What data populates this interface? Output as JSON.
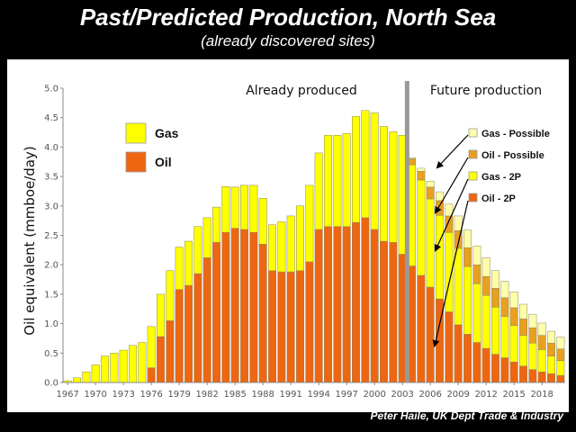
{
  "header": {
    "title": "Past/Predicted Production, North Sea",
    "subtitle": "(already discovered sites)"
  },
  "credit": "Peter Haile, UK Dept Trade & Industry",
  "chart_data": {
    "type": "bar",
    "stacked": true,
    "ylabel": "Oil equivalent (mmboe/day)",
    "ylim": [
      0,
      5
    ],
    "yticks": [
      0.0,
      0.5,
      1.0,
      1.5,
      2.0,
      2.5,
      3.0,
      3.5,
      4.0,
      4.5,
      5.0
    ],
    "ytick_labels": [
      "0.0",
      "0.5",
      "1.0",
      "1.5",
      "2.0",
      "2.5",
      "3.0",
      "3.5",
      "4.0",
      "4.5",
      "5.0"
    ],
    "categories": [
      1967,
      1968,
      1969,
      1970,
      1971,
      1972,
      1973,
      1974,
      1975,
      1976,
      1977,
      1978,
      1979,
      1980,
      1981,
      1982,
      1983,
      1984,
      1985,
      1986,
      1987,
      1988,
      1989,
      1990,
      1991,
      1992,
      1993,
      1994,
      1995,
      1996,
      1997,
      1998,
      1999,
      2000,
      2001,
      2002,
      2003,
      2004,
      2005,
      2006,
      2007,
      2008,
      2009,
      2010,
      2011,
      2012,
      2013,
      2014,
      2015,
      2016,
      2017,
      2018,
      2019,
      2020
    ],
    "xtick_labels": [
      "1967",
      "1970",
      "1973",
      "1976",
      "1979",
      "1982",
      "1985",
      "1988",
      "1991",
      "1994",
      "1997",
      "2000",
      "2003",
      "2006",
      "2009",
      "2012",
      "2015",
      "2018"
    ],
    "xtick_years": [
      1967,
      1970,
      1973,
      1976,
      1979,
      1982,
      1985,
      1988,
      1991,
      1994,
      1997,
      2000,
      2003,
      2006,
      2009,
      2012,
      2015,
      2018
    ],
    "region_labels": [
      "Already produced",
      "Future production"
    ],
    "divider_year": 2003.5,
    "legend_historic": [
      {
        "label": "Gas",
        "color": "#ffff00"
      },
      {
        "label": "Oil",
        "color": "#ee6611"
      }
    ],
    "legend_future": [
      {
        "label": "Gas - Possible",
        "color": "#ffffaa"
      },
      {
        "label": "Oil - Possible",
        "color": "#e8a020"
      },
      {
        "label": "Gas - 2P",
        "color": "#ffff00"
      },
      {
        "label": "Oil - 2P",
        "color": "#ee6611"
      }
    ],
    "series": [
      {
        "name": "Oil",
        "color": "#ee6611",
        "values": [
          0,
          0,
          0,
          0,
          0,
          0,
          0,
          0,
          0,
          0.25,
          0.78,
          1.05,
          1.58,
          1.65,
          1.85,
          2.12,
          2.38,
          2.55,
          2.62,
          2.6,
          2.55,
          2.35,
          1.9,
          1.88,
          1.88,
          1.9,
          2.05,
          2.6,
          2.65,
          2.65,
          2.65,
          2.72,
          2.8,
          2.6,
          2.4,
          2.38,
          2.18,
          null,
          null,
          null,
          null,
          null,
          null,
          null,
          null,
          null,
          null,
          null,
          null,
          null,
          null,
          null,
          null,
          null
        ]
      },
      {
        "name": "Gas",
        "color": "#ffff00",
        "values": [
          0.03,
          0.08,
          0.18,
          0.3,
          0.45,
          0.5,
          0.55,
          0.63,
          0.68,
          0.7,
          0.72,
          0.85,
          0.72,
          0.75,
          0.8,
          0.68,
          0.6,
          0.78,
          0.7,
          0.75,
          0.8,
          0.78,
          0.78,
          0.85,
          0.95,
          1.1,
          1.3,
          1.3,
          1.55,
          1.55,
          1.58,
          1.8,
          1.82,
          1.98,
          1.95,
          1.88,
          2.02,
          null,
          null,
          null,
          null,
          null,
          null,
          null,
          null,
          null,
          null,
          null,
          null,
          null,
          null,
          null,
          null,
          null
        ]
      },
      {
        "name": "Oil - 2P",
        "color": "#ee6611",
        "values": [
          null,
          null,
          null,
          null,
          null,
          null,
          null,
          null,
          null,
          null,
          null,
          null,
          null,
          null,
          null,
          null,
          null,
          null,
          null,
          null,
          null,
          null,
          null,
          null,
          null,
          null,
          null,
          null,
          null,
          null,
          null,
          null,
          null,
          null,
          null,
          null,
          null,
          1.98,
          1.82,
          1.62,
          1.42,
          1.2,
          0.98,
          0.82,
          0.68,
          0.58,
          0.48,
          0.42,
          0.35,
          0.28,
          0.22,
          0.18,
          0.15,
          0.12
        ]
      },
      {
        "name": "Gas - 2P",
        "color": "#ffff00",
        "values": [
          null,
          null,
          null,
          null,
          null,
          null,
          null,
          null,
          null,
          null,
          null,
          null,
          null,
          null,
          null,
          null,
          null,
          null,
          null,
          null,
          null,
          null,
          null,
          null,
          null,
          null,
          null,
          null,
          null,
          null,
          null,
          null,
          null,
          null,
          null,
          null,
          null,
          1.72,
          1.62,
          1.5,
          1.42,
          1.35,
          1.3,
          1.15,
          1.0,
          0.9,
          0.8,
          0.7,
          0.62,
          0.52,
          0.45,
          0.38,
          0.3,
          0.25
        ]
      },
      {
        "name": "Oil - Possible",
        "color": "#e8a020",
        "values": [
          null,
          null,
          null,
          null,
          null,
          null,
          null,
          null,
          null,
          null,
          null,
          null,
          null,
          null,
          null,
          null,
          null,
          null,
          null,
          null,
          null,
          null,
          null,
          null,
          null,
          null,
          null,
          null,
          null,
          null,
          null,
          null,
          null,
          null,
          null,
          null,
          null,
          0.1,
          0.15,
          0.2,
          0.25,
          0.28,
          0.3,
          0.32,
          0.32,
          0.32,
          0.32,
          0.32,
          0.3,
          0.28,
          0.26,
          0.24,
          0.22,
          0.2
        ]
      },
      {
        "name": "Gas - Possible",
        "color": "#ffffaa",
        "values": [
          null,
          null,
          null,
          null,
          null,
          null,
          null,
          null,
          null,
          null,
          null,
          null,
          null,
          null,
          null,
          null,
          null,
          null,
          null,
          null,
          null,
          null,
          null,
          null,
          null,
          null,
          null,
          null,
          null,
          null,
          null,
          null,
          null,
          null,
          null,
          null,
          null,
          0.02,
          0.05,
          0.1,
          0.15,
          0.2,
          0.25,
          0.3,
          0.32,
          0.32,
          0.3,
          0.28,
          0.27,
          0.25,
          0.23,
          0.21,
          0.2,
          0.2
        ]
      }
    ]
  }
}
